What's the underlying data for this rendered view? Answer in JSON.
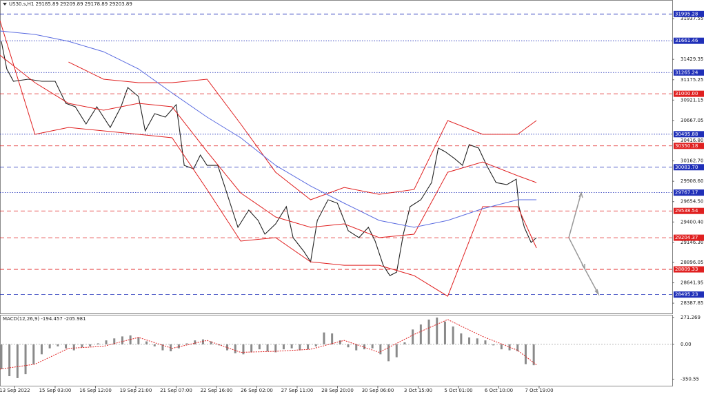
{
  "chart_data": [
    {
      "type": "line",
      "title": "US30.s,H1  29185.89 29209.89 29178.89 29203.89",
      "xlim": [
        0,
        500
      ],
      "ylim": [
        28260,
        32170
      ],
      "xticks": [
        {
          "value": 11,
          "label": "13 Sep 2022"
        },
        {
          "value": 41,
          "label": "15 Sep 03:00"
        },
        {
          "value": 71,
          "label": "16 Sep 12:00"
        },
        {
          "value": 101,
          "label": "19 Sep 21:00"
        },
        {
          "value": 131,
          "label": "21 Sep 07:00"
        },
        {
          "value": 161,
          "label": "22 Sep 16:00"
        },
        {
          "value": 191,
          "label": "26 Sep 02:00"
        },
        {
          "value": 221,
          "label": "27 Sep 11:00"
        },
        {
          "value": 251,
          "label": "28 Sep 20:00"
        },
        {
          "value": 281,
          "label": "30 Sep 06:00"
        },
        {
          "value": 311,
          "label": "3 Oct 15:00"
        },
        {
          "value": 341,
          "label": "5 Oct 01:00"
        },
        {
          "value": 371,
          "label": "6 Oct 10:00"
        },
        {
          "value": 401,
          "label": "7 Oct 19:00"
        }
      ],
      "yticks": [
        31937.55,
        31429.35,
        31175.25,
        30921.15,
        30667.05,
        {
          "value": 30416.8,
          "label": "30416.80"
        },
        {
          "value": 30162.7,
          "label": "30162.70"
        },
        {
          "value": 29908.6,
          "label": "29908.60"
        },
        {
          "value": 29654.5,
          "label": "29654.50"
        },
        {
          "value": 29400.4,
          "label": "29400.40"
        },
        {
          "value": 29146.3,
          "label": "29146.30"
        },
        28896.05,
        28641.95,
        28387.85
      ],
      "levels": [
        {
          "value": 31995.28,
          "color": "#1f2fb8",
          "dash": "dashed"
        },
        {
          "value": 31661.46,
          "color": "#1f2fb8",
          "dash": "dotted"
        },
        {
          "value": 31265.24,
          "color": "#1f2fb8",
          "dash": "dotted"
        },
        {
          "value": 31000,
          "label": "31000.00",
          "color": "#e02020",
          "dash": "dashed"
        },
        {
          "value": 30495.88,
          "color": "#1f2fb8",
          "dash": "dotted"
        },
        {
          "value": 30350.18,
          "color": "#e02020",
          "dash": "dashed"
        },
        {
          "value": 30083.7,
          "label": "30083.70",
          "color": "#1f2fb8",
          "dash": "dashed"
        },
        {
          "value": 29767.17,
          "color": "#1f2fb8",
          "dash": "dotted"
        },
        {
          "value": 29538.54,
          "color": "#e02020",
          "dash": "dashed"
        },
        {
          "value": 29204.37,
          "color": "#e02020",
          "dash": "dashed"
        },
        {
          "value": 28809.33,
          "color": "#e02020",
          "dash": "dashed"
        },
        {
          "value": 28495.23,
          "color": "#1f2fb8",
          "dash": "dashed"
        }
      ],
      "series": [
        {
          "color": "#222222",
          "x": [
            1,
            5,
            10,
            21,
            31,
            41,
            49,
            56,
            64,
            72,
            82,
            90,
            95,
            103,
            108,
            115,
            123,
            131,
            134,
            137,
            144,
            149,
            154,
            162,
            167,
            172,
            177,
            185,
            192,
            197,
            205,
            213,
            218,
            226,
            231,
            236,
            244,
            251,
            259,
            267,
            274,
            279,
            285,
            290,
            295,
            300,
            305,
            313,
            321,
            326,
            331,
            338,
            344,
            349,
            356,
            362,
            369,
            377,
            384,
            386,
            390,
            395,
            399
          ],
          "values": [
            31654,
            31311,
            31156,
            31182,
            31156,
            31156,
            30881,
            30838,
            30623,
            30838,
            30580,
            30838,
            31078,
            30967,
            30537,
            30752,
            30709,
            30864,
            30494,
            30107,
            30064,
            30236,
            30107,
            30107,
            29849,
            29592,
            29334,
            29549,
            29420,
            29248,
            29377,
            29592,
            29205,
            29033,
            28904,
            29420,
            29678,
            29635,
            29291,
            29205,
            29334,
            29162,
            28861,
            28732,
            28775,
            29248,
            29592,
            29678,
            29892,
            30322,
            30279,
            30193,
            30107,
            30365,
            30322,
            30107,
            29892,
            29866,
            29935,
            29592,
            29334,
            29145,
            29205
          ]
        },
        {
          "color": "#e02020",
          "x": [
            0,
            26,
            51,
            77,
            103,
            128,
            154,
            179,
            205,
            231,
            256,
            282,
            308,
            333,
            359,
            385,
            399
          ],
          "values": [
            null,
            null,
            31396,
            31182,
            31139,
            31139,
            31182,
            30623,
            30021,
            29678,
            29832,
            29746,
            29806,
            30666,
            30494,
            30494,
            30666
          ]
        },
        {
          "color": "#e02020",
          "x": [
            0,
            26,
            51,
            77,
            103,
            128,
            154,
            179,
            205,
            231,
            256,
            282,
            308,
            333,
            359,
            385,
            399
          ],
          "values": [
            31482,
            31139,
            30881,
            30795,
            30881,
            30838,
            30279,
            29763,
            29463,
            29334,
            29377,
            29205,
            29248,
            30021,
            30150,
            29978,
            29892
          ]
        },
        {
          "color": "#e02020",
          "x": [
            0,
            26,
            51,
            77,
            103,
            128,
            154,
            179,
            205,
            231,
            256,
            282,
            308,
            333,
            359,
            385,
            399
          ],
          "values": [
            31912,
            30494,
            30580,
            30537,
            30494,
            30451,
            29806,
            29162,
            29205,
            28904,
            28861,
            28861,
            28732,
            28474,
            29592,
            29592,
            29076
          ]
        },
        {
          "color": "#5a6be0",
          "x": [
            0,
            26,
            51,
            77,
            103,
            128,
            154,
            179,
            205,
            231,
            256,
            282,
            308,
            333,
            359,
            385,
            399
          ],
          "values": [
            31783,
            31740,
            31654,
            31525,
            31311,
            31010,
            30709,
            30451,
            30107,
            29849,
            29635,
            29420,
            29334,
            29420,
            29566,
            29678,
            29678
          ]
        }
      ]
    },
    {
      "type": "bar",
      "title": "MACD(12,26,9) -194.457 -205.981",
      "xlim": [
        0,
        500
      ],
      "ylim": [
        -417,
        298
      ],
      "yticks": [
        271.269,
        {
          "value": 0,
          "label": "0.00"
        },
        -350.55
      ],
      "color": "#8a8a8a",
      "x": [
        1,
        7,
        13,
        19,
        25,
        31,
        37,
        43,
        49,
        55,
        61,
        67,
        73,
        79,
        85,
        91,
        97,
        103,
        109,
        115,
        121,
        127,
        133,
        139,
        145,
        151,
        157,
        163,
        169,
        175,
        181,
        187,
        193,
        199,
        205,
        211,
        217,
        223,
        229,
        235,
        241,
        247,
        253,
        259,
        265,
        271,
        277,
        283,
        289,
        295,
        301,
        307,
        313,
        319,
        325,
        331,
        337,
        343,
        349,
        355,
        361,
        367,
        373,
        379,
        385,
        391,
        397
      ],
      "values": [
        -250,
        -320,
        -340,
        -300,
        -200,
        -100,
        -40,
        -20,
        -40,
        -60,
        -30,
        -20,
        10,
        40,
        60,
        80,
        90,
        70,
        30,
        -20,
        -60,
        -70,
        -40,
        10,
        40,
        50,
        30,
        -10,
        -60,
        -90,
        -100,
        -80,
        -50,
        -70,
        -80,
        -50,
        -40,
        -60,
        -50,
        -20,
        120,
        110,
        40,
        -30,
        -60,
        -50,
        -40,
        -100,
        -170,
        -130,
        20,
        150,
        200,
        250,
        270,
        230,
        180,
        110,
        70,
        60,
        40,
        -10,
        -50,
        -60,
        -70,
        -200,
        -210
      ],
      "signal": {
        "color": "#e02020",
        "x": [
          0,
          26,
          51,
          77,
          103,
          128,
          154,
          179,
          205,
          231,
          256,
          282,
          308,
          333,
          359,
          385,
          399
        ],
        "values": [
          -250,
          -200,
          -40,
          -20,
          70,
          -40,
          40,
          -80,
          -70,
          -50,
          40,
          -80,
          100,
          250,
          80,
          -60,
          -206
        ]
      }
    }
  ]
}
